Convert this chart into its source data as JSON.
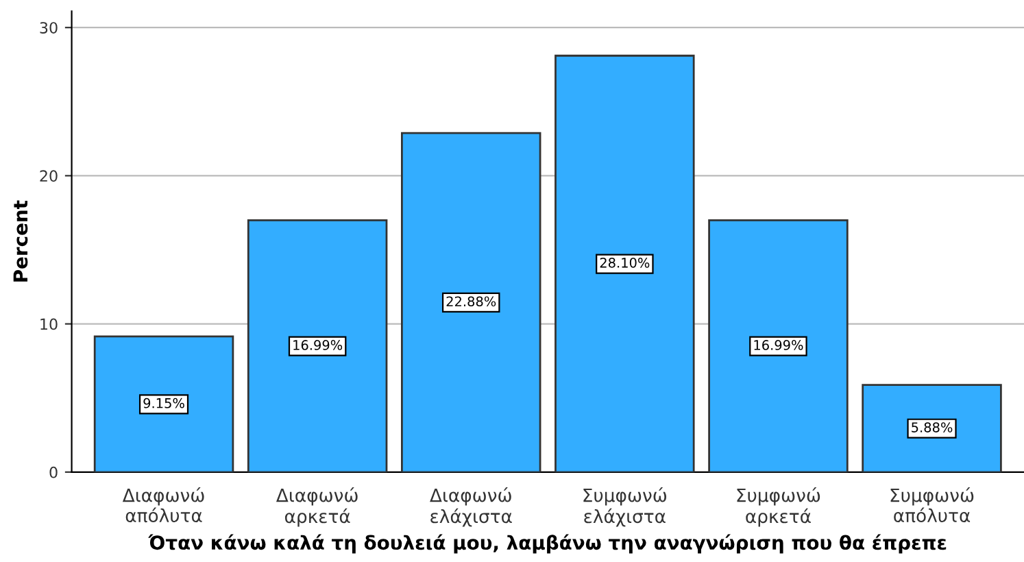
{
  "chart_data": {
    "type": "bar",
    "xlabel": "Όταν κάνω καλά τη δουλειά μου, λαμβάνω την αναγνώριση που θα έπρεπε",
    "ylabel": "Percent",
    "categories": [
      "Διαφωνώ\nαπόλυτα",
      "Διαφωνώ\nαρκετά",
      "Διαφωνώ\nελάχιστα",
      "Συμφωνώ\nελάχιστα",
      "Συμφωνώ\nαρκετά",
      "Συμφωνώ\nαπόλυτα"
    ],
    "values": [
      9.15,
      16.99,
      22.88,
      28.1,
      16.99,
      5.88
    ],
    "value_labels": [
      "9.15%",
      "16.99%",
      "22.88%",
      "28.10%",
      "16.99%",
      "5.88%"
    ],
    "color": "#33adff",
    "ylim": [
      0,
      31.1
    ],
    "yticks": [
      0,
      10,
      20,
      30
    ],
    "grid": "y"
  }
}
